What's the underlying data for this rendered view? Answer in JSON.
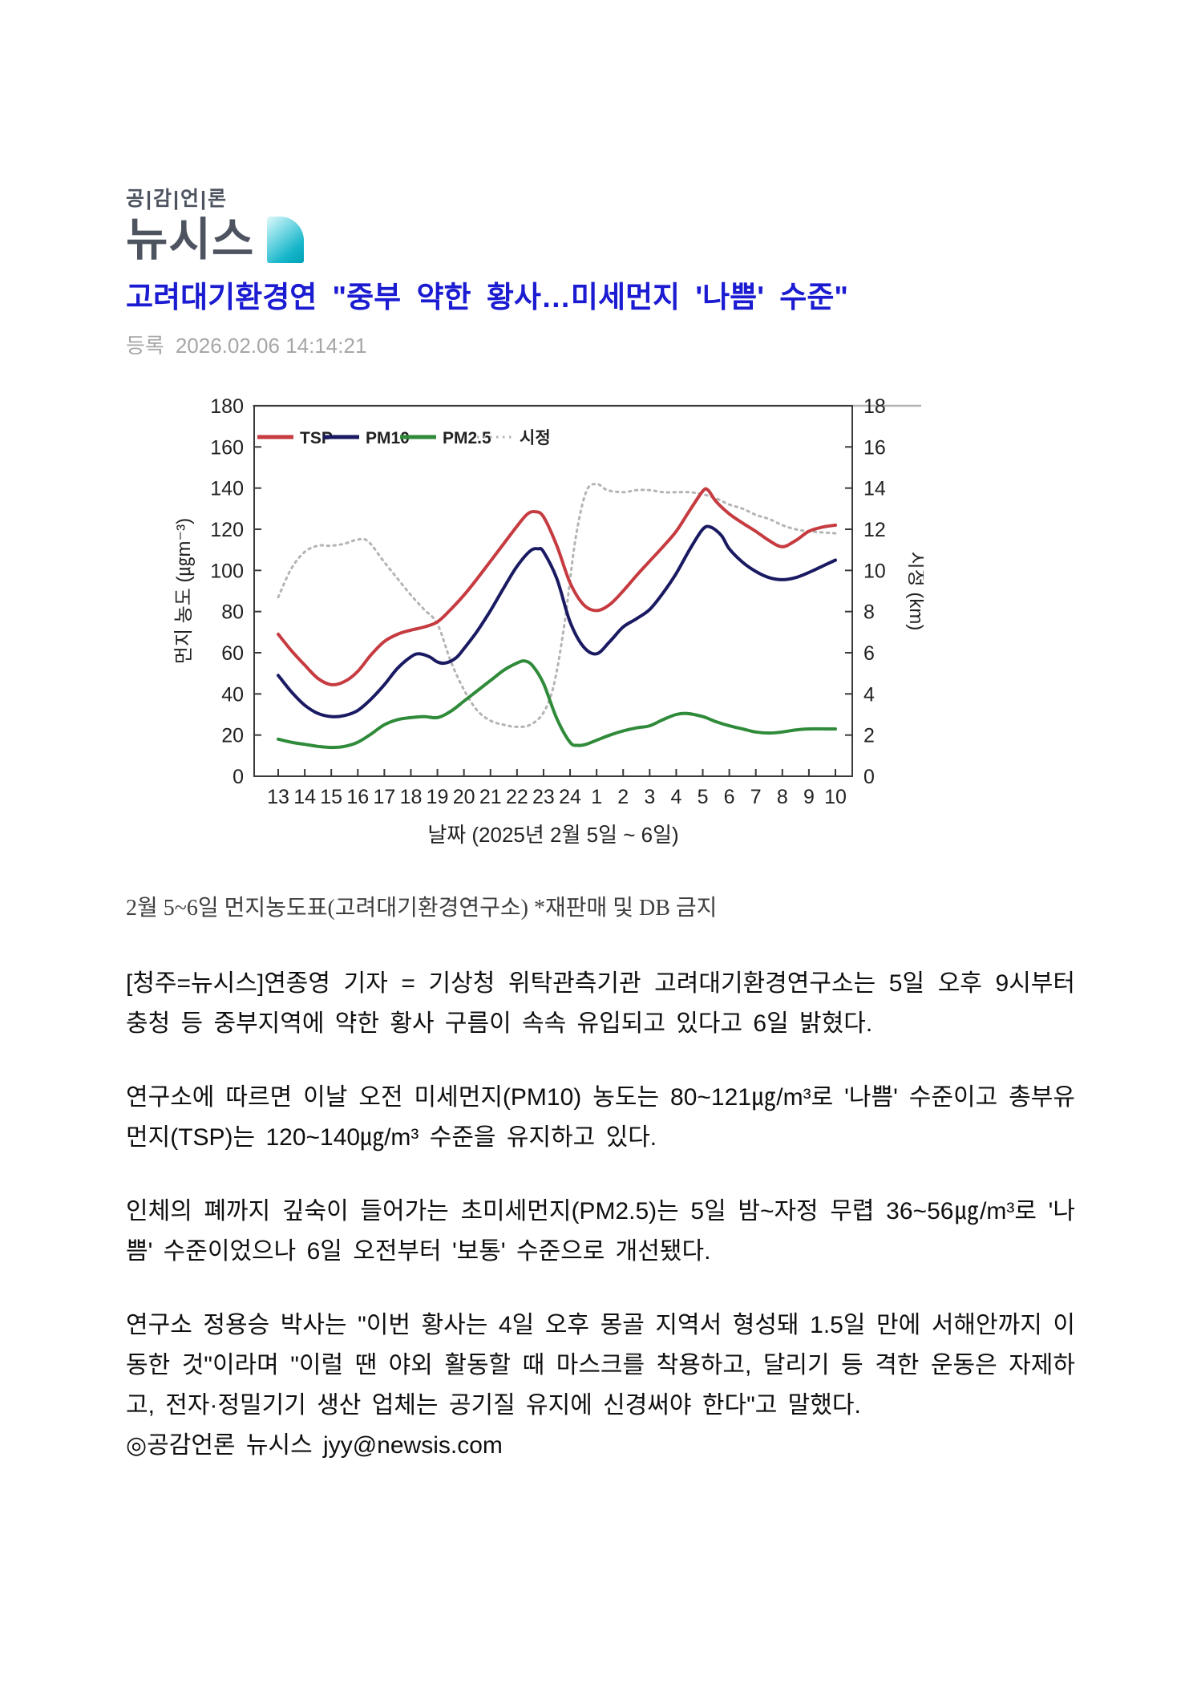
{
  "header": {
    "logo_tagline": "공|감|언|론",
    "logo_wordmark": "뉴시스",
    "title": "고려대기환경연 \"중부 약한 황사…미세먼지 '나쁨' 수준\"",
    "published_label": "등록",
    "published_datetime": "2026.02.06 14:14:21"
  },
  "colors": {
    "title_blue": "#1b1bd1",
    "logo_slate": "#4d5460",
    "logo_mark_teal": "#00a1b6",
    "tsp_red": "#c63b40",
    "pm10_navy": "#1a1a63",
    "pm25_green": "#2f8b3a",
    "visibility_gray": "#b4b4b4"
  },
  "figure": {
    "caption": "2월 5~6일 먼지농도표(고려대기환경연구소) *재판매 및 DB 금지"
  },
  "chart_data": {
    "type": "line",
    "title": "",
    "xlabel": "날짜 (2025년  2월 5일 ~ 6일)",
    "ylabel_left": "먼지 농도 (㎍m⁻³)",
    "ylabel_right": "시정 (km)",
    "ylim_left": [
      0,
      180
    ],
    "ytick_step_left": 20,
    "ylim_right": [
      0,
      18
    ],
    "ytick_step_right": 2,
    "grid": false,
    "legend_position": "inside-top-left",
    "x_tick_labels": [
      "13",
      "14",
      "15",
      "16",
      "17",
      "18",
      "19",
      "20",
      "21",
      "22",
      "23",
      "24",
      "1",
      "2",
      "3",
      "4",
      "5",
      "6",
      "7",
      "8",
      "9",
      "10"
    ],
    "series": [
      {
        "name": "TSP",
        "axis": "left",
        "style": "solid",
        "color": "#c63b40",
        "points": [
          [
            0,
            69
          ],
          [
            0.5,
            61
          ],
          [
            1,
            54
          ],
          [
            1.5,
            47.5
          ],
          [
            2,
            44.5
          ],
          [
            2.5,
            46
          ],
          [
            3,
            51
          ],
          [
            3.5,
            59
          ],
          [
            4,
            65.5
          ],
          [
            4.5,
            69
          ],
          [
            5,
            71
          ],
          [
            5.5,
            72.5
          ],
          [
            6,
            75
          ],
          [
            6.5,
            81
          ],
          [
            7,
            88
          ],
          [
            7.5,
            96
          ],
          [
            8,
            104.5
          ],
          [
            8.5,
            113
          ],
          [
            9,
            121.5
          ],
          [
            9.4,
            127.5
          ],
          [
            9.7,
            128.5
          ],
          [
            10,
            126
          ],
          [
            10.5,
            112
          ],
          [
            11,
            94
          ],
          [
            11.5,
            83.5
          ],
          [
            12,
            80.5
          ],
          [
            12.5,
            83.5
          ],
          [
            13,
            90
          ],
          [
            13.5,
            97.5
          ],
          [
            14,
            104.5
          ],
          [
            14.5,
            111.5
          ],
          [
            15,
            119
          ],
          [
            15.5,
            129
          ],
          [
            16,
            138.5
          ],
          [
            16.2,
            139
          ],
          [
            16.5,
            133.5
          ],
          [
            17,
            127.5
          ],
          [
            17.5,
            123
          ],
          [
            18,
            119
          ],
          [
            18.5,
            114.5
          ],
          [
            19,
            111.5
          ],
          [
            19.5,
            114.5
          ],
          [
            20,
            119
          ],
          [
            20.5,
            121
          ],
          [
            21,
            122
          ]
        ]
      },
      {
        "name": "PM10",
        "axis": "left",
        "style": "solid",
        "color": "#1a1a63",
        "points": [
          [
            0,
            49
          ],
          [
            0.5,
            41
          ],
          [
            1,
            34.5
          ],
          [
            1.5,
            30.5
          ],
          [
            2,
            29
          ],
          [
            2.5,
            29.5
          ],
          [
            3,
            32
          ],
          [
            3.5,
            37.5
          ],
          [
            4,
            44.5
          ],
          [
            4.5,
            52.5
          ],
          [
            5,
            58
          ],
          [
            5.3,
            59.5
          ],
          [
            5.7,
            58
          ],
          [
            6,
            55.5
          ],
          [
            6.3,
            55
          ],
          [
            6.7,
            57.5
          ],
          [
            7,
            62
          ],
          [
            7.5,
            70.5
          ],
          [
            8,
            80.5
          ],
          [
            8.5,
            91.5
          ],
          [
            9,
            102
          ],
          [
            9.5,
            109.5
          ],
          [
            9.8,
            110.5
          ],
          [
            10,
            109
          ],
          [
            10.5,
            96
          ],
          [
            11,
            75
          ],
          [
            11.5,
            63
          ],
          [
            12,
            59.5
          ],
          [
            12.5,
            65.5
          ],
          [
            13,
            72.5
          ],
          [
            13.5,
            76.5
          ],
          [
            14,
            81
          ],
          [
            14.5,
            89
          ],
          [
            15,
            98.5
          ],
          [
            15.5,
            110
          ],
          [
            16,
            120
          ],
          [
            16.3,
            121
          ],
          [
            16.7,
            117
          ],
          [
            17,
            110.5
          ],
          [
            17.5,
            104
          ],
          [
            18,
            99.5
          ],
          [
            18.5,
            96.5
          ],
          [
            19,
            95.5
          ],
          [
            19.5,
            96.5
          ],
          [
            20,
            99
          ],
          [
            20.5,
            102
          ],
          [
            21,
            105
          ]
        ]
      },
      {
        "name": "PM2.5",
        "axis": "left",
        "style": "solid",
        "color": "#2f8b3a",
        "points": [
          [
            0,
            18
          ],
          [
            0.5,
            16.5
          ],
          [
            1,
            15.5
          ],
          [
            1.5,
            14.5
          ],
          [
            2,
            14
          ],
          [
            2.5,
            14.5
          ],
          [
            3,
            16.5
          ],
          [
            3.5,
            20.5
          ],
          [
            4,
            25
          ],
          [
            4.5,
            27.5
          ],
          [
            5,
            28.5
          ],
          [
            5.5,
            29
          ],
          [
            6,
            28.5
          ],
          [
            6.5,
            31.5
          ],
          [
            7,
            36.5
          ],
          [
            7.5,
            41.5
          ],
          [
            8,
            46.5
          ],
          [
            8.5,
            51.5
          ],
          [
            9,
            55
          ],
          [
            9.3,
            56
          ],
          [
            9.6,
            53.5
          ],
          [
            10,
            45
          ],
          [
            10.5,
            28
          ],
          [
            11,
            16.5
          ],
          [
            11.3,
            15
          ],
          [
            11.6,
            15.5
          ],
          [
            12,
            17.5
          ],
          [
            12.5,
            20
          ],
          [
            13,
            22
          ],
          [
            13.5,
            23.5
          ],
          [
            14,
            24.5
          ],
          [
            14.5,
            27.5
          ],
          [
            15,
            30
          ],
          [
            15.4,
            30.5
          ],
          [
            16,
            29
          ],
          [
            16.5,
            26.5
          ],
          [
            17,
            24.5
          ],
          [
            17.5,
            23
          ],
          [
            18,
            21.5
          ],
          [
            18.5,
            21
          ],
          [
            19,
            21.5
          ],
          [
            19.5,
            22.5
          ],
          [
            20,
            23
          ],
          [
            21,
            23
          ]
        ]
      },
      {
        "name": "시정",
        "axis": "right",
        "style": "dotted",
        "color": "#b4b4b4",
        "points": [
          [
            0,
            8.7
          ],
          [
            0.5,
            10.1
          ],
          [
            1,
            10.9
          ],
          [
            1.5,
            11.2
          ],
          [
            2,
            11.2
          ],
          [
            2.5,
            11.3
          ],
          [
            3,
            11.5
          ],
          [
            3.4,
            11.4
          ],
          [
            4,
            10.4
          ],
          [
            4.5,
            9.6
          ],
          [
            5,
            8.8
          ],
          [
            5.5,
            8.1
          ],
          [
            6,
            7.4
          ],
          [
            6.5,
            5.6
          ],
          [
            7,
            4.2
          ],
          [
            7.5,
            3.2
          ],
          [
            8,
            2.7
          ],
          [
            8.5,
            2.5
          ],
          [
            9,
            2.4
          ],
          [
            9.5,
            2.5
          ],
          [
            10,
            3.1
          ],
          [
            10.4,
            4.5
          ],
          [
            10.8,
            7.5
          ],
          [
            11.2,
            11.5
          ],
          [
            11.6,
            13.8
          ],
          [
            12,
            14.2
          ],
          [
            12.4,
            13.9
          ],
          [
            13,
            13.8
          ],
          [
            13.5,
            13.9
          ],
          [
            14,
            13.9
          ],
          [
            14.5,
            13.8
          ],
          [
            15,
            13.8
          ],
          [
            15.5,
            13.8
          ],
          [
            16,
            13.7
          ],
          [
            16.5,
            13.5
          ],
          [
            17,
            13.2
          ],
          [
            17.5,
            13
          ],
          [
            18,
            12.7
          ],
          [
            18.5,
            12.5
          ],
          [
            19,
            12.2
          ],
          [
            19.5,
            12
          ],
          [
            20,
            11.9
          ],
          [
            21,
            11.8
          ]
        ]
      }
    ]
  },
  "article": {
    "paragraphs": [
      "[청주=뉴시스]연종영 기자 = 기상청 위탁관측기관 고려대기환경연구소는 5일 오후 9시부터 충청 등 중부지역에 약한 황사 구름이 속속 유입되고 있다고 6일 밝혔다.",
      "연구소에 따르면 이날 오전 미세먼지(PM10) 농도는 80~121㎍/m³로 '나쁨' 수준이고 총부유먼지(TSP)는 120~140㎍/m³ 수준을 유지하고 있다.",
      "인체의 폐까지 깊숙이 들어가는 초미세먼지(PM2.5)는 5일 밤~자정 무렵 36~56㎍/m³로 '나쁨' 수준이었으나 6일 오전부터 '보통' 수준으로 개선됐다.",
      "연구소 정용승 박사는 \"이번 황사는 4일 오후 몽골 지역서 형성돼 1.5일 만에 서해안까지 이동한 것\"이라며 \"이럴 땐 야외 활동할 때 마스크를 착용하고, 달리기 등 격한 운동은 자제하고, 전자·정밀기기 생산 업체는 공기질 유지에 신경써야 한다\"고 말했다."
    ],
    "signoff": "◎공감언론 뉴시스 jyy@newsis.com"
  }
}
